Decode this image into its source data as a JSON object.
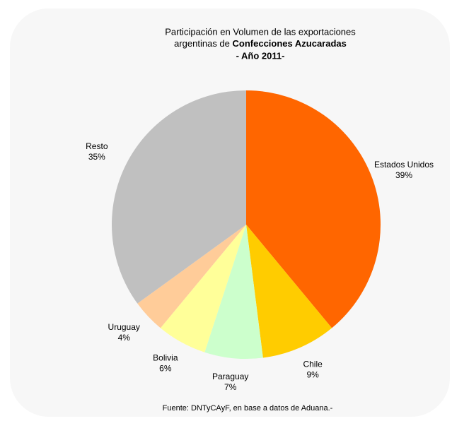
{
  "chart_data": {
    "type": "pie",
    "title": [
      "Participación en Volumen de las exportaciones",
      "argentinas de",
      "Confecciones Azucaradas",
      "- Año 2011-"
    ],
    "categories": [
      "Estados Unidos",
      "Chile",
      "Paraguay",
      "Bolivia",
      "Uruguay",
      "Resto"
    ],
    "values": [
      39,
      9,
      7,
      6,
      4,
      35
    ],
    "value_labels": [
      "39%",
      "9%",
      "7%",
      "6%",
      "4%",
      "35%"
    ],
    "colors": [
      "#ff6600",
      "#ffcc00",
      "#ccffcc",
      "#ffff99",
      "#ffcc99",
      "#c0c0c0"
    ],
    "source": "Fuente: DNTyCAyF, en base a datos de Aduana.-"
  }
}
